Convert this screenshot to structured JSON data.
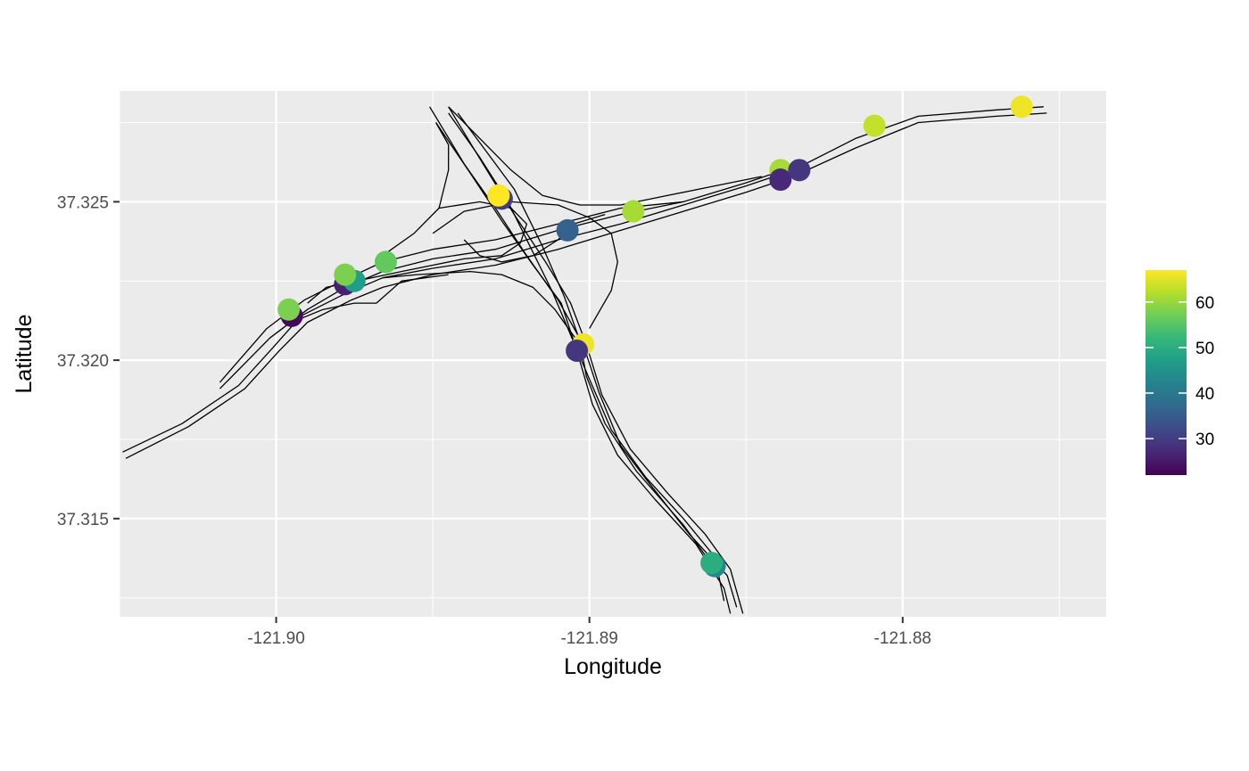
{
  "chart_data": {
    "type": "scatter",
    "title": "",
    "xlabel": "Longitude",
    "ylabel": "Latitude",
    "xlim": [
      -121.905,
      -121.8735
    ],
    "ylim": [
      37.3119,
      37.3285
    ],
    "x_major_ticks": [
      -121.9,
      -121.89,
      -121.88
    ],
    "x_tick_labels": [
      "-121.90",
      "-121.89",
      "-121.88"
    ],
    "x_minor_ticks": [
      -121.905,
      -121.895,
      -121.885,
      -121.875
    ],
    "y_major_ticks": [
      37.315,
      37.32,
      37.325
    ],
    "y_tick_labels": [
      "37.315",
      "37.320",
      "37.325"
    ],
    "y_minor_ticks": [
      37.3125,
      37.3175,
      37.3225,
      37.3275
    ],
    "grid": true,
    "legend": {
      "type": "colorbar",
      "position": "right",
      "min": 22,
      "max": 67,
      "ticks": [
        30,
        40,
        50,
        60
      ],
      "tick_labels": [
        "30",
        "40",
        "50",
        "60"
      ],
      "palette": "viridis",
      "colors": [
        "#440154",
        "#482878",
        "#3E4A89",
        "#31688E",
        "#26828E",
        "#1F9E89",
        "#35B779",
        "#6DCD59",
        "#B4DE2C",
        "#FDE725"
      ]
    },
    "points": [
      {
        "x": -121.8995,
        "y": 37.3214,
        "value": 23
      },
      {
        "x": -121.8996,
        "y": 37.3216,
        "value": 58
      },
      {
        "x": -121.8978,
        "y": 37.3224,
        "value": 26
      },
      {
        "x": -121.8975,
        "y": 37.3225,
        "value": 47
      },
      {
        "x": -121.8978,
        "y": 37.3227,
        "value": 58
      },
      {
        "x": -121.8965,
        "y": 37.3231,
        "value": 56
      },
      {
        "x": -121.8928,
        "y": 37.3251,
        "value": 30
      },
      {
        "x": -121.8929,
        "y": 37.3252,
        "value": 67
      },
      {
        "x": -121.8907,
        "y": 37.3241,
        "value": 36
      },
      {
        "x": -121.8886,
        "y": 37.3247,
        "value": 61
      },
      {
        "x": -121.8902,
        "y": 37.3205,
        "value": 66
      },
      {
        "x": -121.8904,
        "y": 37.3203,
        "value": 29
      },
      {
        "x": -121.886,
        "y": 37.3135,
        "value": 43
      },
      {
        "x": -121.8861,
        "y": 37.3136,
        "value": 50
      },
      {
        "x": -121.8839,
        "y": 37.326,
        "value": 61
      },
      {
        "x": -121.8839,
        "y": 37.3257,
        "value": 27
      },
      {
        "x": -121.8833,
        "y": 37.326,
        "value": 29
      },
      {
        "x": -121.8809,
        "y": 37.3274,
        "value": 63
      },
      {
        "x": -121.8762,
        "y": 37.328,
        "value": 66
      }
    ],
    "road_lines": [
      [
        [
          -121.9049,
          37.3171
        ],
        [
          -121.903,
          37.318
        ],
        [
          -121.9012,
          37.3192
        ],
        [
          -121.9001,
          37.3204
        ],
        [
          -121.8992,
          37.3214
        ],
        [
          -121.8978,
          37.3221
        ],
        [
          -121.8966,
          37.3226
        ],
        [
          -121.895,
          37.3229
        ],
        [
          -121.893,
          37.3232
        ],
        [
          -121.891,
          37.3238
        ],
        [
          -121.889,
          37.3243
        ],
        [
          -121.887,
          37.3249
        ],
        [
          -121.885,
          37.3255
        ],
        [
          -121.8835,
          37.326
        ],
        [
          -121.8815,
          37.327
        ],
        [
          -121.8795,
          37.3277
        ],
        [
          -121.877,
          37.3279
        ],
        [
          -121.8755,
          37.328
        ]
      ],
      [
        [
          -121.9048,
          37.3169
        ],
        [
          -121.9028,
          37.3179
        ],
        [
          -121.901,
          37.3191
        ],
        [
          -121.8999,
          37.3203
        ],
        [
          -121.899,
          37.3212
        ],
        [
          -121.8976,
          37.3219
        ],
        [
          -121.8966,
          37.3223
        ],
        [
          -121.895,
          37.3227
        ],
        [
          -121.893,
          37.323
        ],
        [
          -121.891,
          37.3235
        ],
        [
          -121.889,
          37.3241
        ],
        [
          -121.887,
          37.3247
        ],
        [
          -121.885,
          37.3253
        ],
        [
          -121.8835,
          37.3258
        ],
        [
          -121.8815,
          37.3267
        ],
        [
          -121.8795,
          37.3275
        ],
        [
          -121.877,
          37.3277
        ],
        [
          -121.8754,
          37.3278
        ]
      ],
      [
        [
          -121.9018,
          37.3191
        ],
        [
          -121.9002,
          37.3207
        ],
        [
          -121.899,
          37.3216
        ],
        [
          -121.8978,
          37.3223
        ],
        [
          -121.8966,
          37.3228
        ],
        [
          -121.895,
          37.3232
        ],
        [
          -121.893,
          37.3235
        ],
        [
          -121.891,
          37.3241
        ],
        [
          -121.889,
          37.3246
        ],
        [
          -121.887,
          37.325
        ],
        [
          -121.885,
          37.3256
        ],
        [
          -121.8835,
          37.3261
        ]
      ],
      [
        [
          -121.9018,
          37.3193
        ],
        [
          -121.9003,
          37.321
        ],
        [
          -121.8991,
          37.3219
        ],
        [
          -121.8979,
          37.3225
        ],
        [
          -121.8966,
          37.3231
        ],
        [
          -121.895,
          37.3235
        ],
        [
          -121.893,
          37.3238
        ],
        [
          -121.891,
          37.3243
        ],
        [
          -121.889,
          37.3248
        ],
        [
          -121.887,
          37.325
        ]
      ],
      [
        [
          -121.8951,
          37.328
        ],
        [
          -121.894,
          37.3262
        ],
        [
          -121.893,
          37.3248
        ],
        [
          -121.892,
          37.3233
        ],
        [
          -121.891,
          37.3219
        ],
        [
          -121.8902,
          37.3205
        ],
        [
          -121.8897,
          37.319
        ],
        [
          -121.889,
          37.3173
        ],
        [
          -121.888,
          37.316
        ],
        [
          -121.8868,
          37.3145
        ],
        [
          -121.8856,
          37.3132
        ],
        [
          -121.8853,
          37.3122
        ]
      ],
      [
        [
          -121.8949,
          37.3275
        ],
        [
          -121.8938,
          37.3259
        ],
        [
          -121.8928,
          37.3244
        ],
        [
          -121.8918,
          37.323
        ],
        [
          -121.8909,
          37.3218
        ],
        [
          -121.8904,
          37.3203
        ],
        [
          -121.8899,
          37.3186
        ],
        [
          -121.8891,
          37.317
        ],
        [
          -121.8879,
          37.3156
        ],
        [
          -121.8866,
          37.3142
        ],
        [
          -121.8857,
          37.3128
        ],
        [
          -121.8855,
          37.312
        ]
      ],
      [
        [
          -121.8945,
          37.328
        ],
        [
          -121.8934,
          37.3262
        ],
        [
          -121.8924,
          37.3246
        ],
        [
          -121.8914,
          37.3231
        ],
        [
          -121.8906,
          37.3218
        ],
        [
          -121.8901,
          37.3205
        ],
        [
          -121.8896,
          37.3189
        ],
        [
          -121.8887,
          37.3172
        ],
        [
          -121.8875,
          37.3158
        ],
        [
          -121.8863,
          37.3145
        ],
        [
          -121.8855,
          37.3134
        ],
        [
          -121.8851,
          37.312
        ]
      ],
      [
        [
          -121.8945,
          37.3278
        ],
        [
          -121.8935,
          37.3264
        ],
        [
          -121.8926,
          37.325
        ],
        [
          -121.8919,
          37.3236
        ],
        [
          -121.8912,
          37.3222
        ],
        [
          -121.8906,
          37.3208
        ],
        [
          -121.89,
          37.3194
        ],
        [
          -121.8893,
          37.3178
        ],
        [
          -121.8882,
          37.3163
        ],
        [
          -121.887,
          37.315
        ],
        [
          -121.886,
          37.3138
        ],
        [
          -121.8857,
          37.3124
        ]
      ],
      [
        [
          -121.8942,
          37.3278
        ],
        [
          -121.8933,
          37.3266
        ],
        [
          -121.8924,
          37.3254
        ],
        [
          -121.8915,
          37.3236
        ],
        [
          -121.8908,
          37.322
        ],
        [
          -121.8903,
          37.3206
        ],
        [
          -121.8901,
          37.3195
        ],
        [
          -121.8895,
          37.318
        ],
        [
          -121.8885,
          37.3165
        ],
        [
          -121.887,
          37.3148
        ],
        [
          -121.8862,
          37.3137
        ]
      ],
      [
        [
          -121.8945,
          37.328
        ],
        [
          -121.8935,
          37.327
        ],
        [
          -121.8925,
          37.326
        ],
        [
          -121.8915,
          37.3252
        ],
        [
          -121.8903,
          37.3249
        ],
        [
          -121.889,
          37.3249
        ],
        [
          -121.8875,
          37.3252
        ],
        [
          -121.886,
          37.3255
        ],
        [
          -121.8845,
          37.3258
        ]
      ],
      [
        [
          -121.8949,
          37.3275
        ],
        [
          -121.8945,
          37.3268
        ],
        [
          -121.8945,
          37.326
        ],
        [
          -121.8948,
          37.3248
        ],
        [
          -121.8956,
          37.324
        ],
        [
          -121.8966,
          37.3233
        ]
      ],
      [
        [
          -121.899,
          37.3218
        ],
        [
          -121.8984,
          37.3223
        ],
        [
          -121.896,
          37.3228
        ],
        [
          -121.894,
          37.3232
        ],
        [
          -121.8928,
          37.3233
        ],
        [
          -121.8922,
          37.3237
        ],
        [
          -121.892,
          37.3243
        ],
        [
          -121.8925,
          37.3248
        ],
        [
          -121.8935,
          37.325
        ],
        [
          -121.8948,
          37.3248
        ]
      ],
      [
        [
          -121.8966,
          37.3226
        ],
        [
          -121.8955,
          37.3227
        ],
        [
          -121.8938,
          37.3228
        ],
        [
          -121.8928,
          37.3227
        ],
        [
          -121.8918,
          37.3223
        ],
        [
          -121.8911,
          37.3216
        ],
        [
          -121.8906,
          37.3209
        ],
        [
          -121.8903,
          37.3205
        ]
      ],
      [
        [
          -121.894,
          37.3238
        ],
        [
          -121.8935,
          37.3233
        ],
        [
          -121.8928,
          37.3231
        ],
        [
          -121.8918,
          37.3233
        ],
        [
          -121.891,
          37.3238
        ],
        [
          -121.8905,
          37.3243
        ],
        [
          -121.8895,
          37.3246
        ]
      ],
      [
        [
          -121.895,
          37.324
        ],
        [
          -121.894,
          37.3247
        ],
        [
          -121.8925,
          37.325
        ],
        [
          -121.891,
          37.3249
        ],
        [
          -121.89,
          37.3245
        ],
        [
          -121.8893,
          37.324
        ],
        [
          -121.8891,
          37.3231
        ],
        [
          -121.8893,
          37.3222
        ],
        [
          -121.89,
          37.321
        ]
      ],
      [
        [
          -121.8995,
          37.3212
        ],
        [
          -121.8985,
          37.3216
        ],
        [
          -121.8975,
          37.3218
        ],
        [
          -121.8968,
          37.3218
        ],
        [
          -121.896,
          37.3225
        ],
        [
          -121.8945,
          37.3227
        ]
      ]
    ]
  }
}
